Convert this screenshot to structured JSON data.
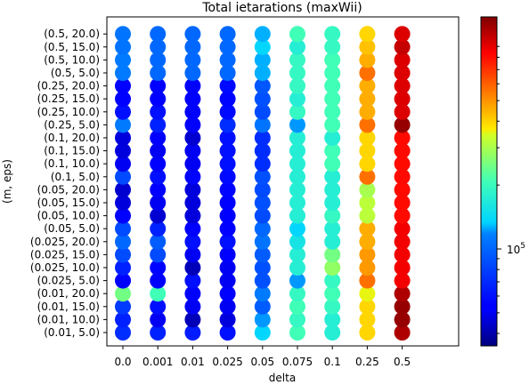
{
  "chart_data": {
    "type": "scatter",
    "title": "Total ietarations (maxWii)",
    "xlabel": "delta",
    "ylabel": "(m, eps)",
    "x_categories": [
      "0.0",
      "0.001",
      "0.01",
      "0.025",
      "0.05",
      "0.075",
      "0.1",
      "0.25",
      "0.5"
    ],
    "y_categories": [
      "(0.01, 5.0)",
      "(0.01, 10.0)",
      "(0.01, 15.0)",
      "(0.01, 20.0)",
      "(0.025, 5.0)",
      "(0.025, 10.0)",
      "(0.025, 15.0)",
      "(0.025, 20.0)",
      "(0.05, 5.0)",
      "(0.05, 10.0)",
      "(0.05, 15.0)",
      "(0.05, 20.0)",
      "(0.1, 5.0)",
      "(0.1, 10.0)",
      "(0.1, 15.0)",
      "(0.1, 20.0)",
      "(0.25, 5.0)",
      "(0.25, 10.0)",
      "(0.25, 15.0)",
      "(0.25, 20.0)",
      "(0.5, 5.0)",
      "(0.5, 10.0)",
      "(0.5, 15.0)",
      "(0.5, 20.0)"
    ],
    "color_fraction_columns_by_delta": [
      [
        0.2,
        0.18,
        0.22,
        0.55,
        0.12,
        0.18,
        0.25,
        0.3,
        0.25,
        0.12,
        0.08,
        0.07,
        0.25,
        0.1,
        0.08,
        0.08,
        0.33,
        0.15,
        0.12,
        0.12,
        0.33,
        0.33,
        0.32,
        0.32
      ],
      [
        0.18,
        0.1,
        0.15,
        0.5,
        0.12,
        0.13,
        0.25,
        0.28,
        0.18,
        0.07,
        0.1,
        0.12,
        0.15,
        0.12,
        0.1,
        0.11,
        0.18,
        0.15,
        0.12,
        0.12,
        0.3,
        0.3,
        0.3,
        0.3
      ],
      [
        0.17,
        0.05,
        0.1,
        0.12,
        0.15,
        0.05,
        0.1,
        0.15,
        0.12,
        0.08,
        0.08,
        0.08,
        0.13,
        0.1,
        0.1,
        0.07,
        0.12,
        0.12,
        0.12,
        0.12,
        0.3,
        0.3,
        0.3,
        0.3
      ],
      [
        0.15,
        0.08,
        0.1,
        0.12,
        0.1,
        0.1,
        0.12,
        0.15,
        0.12,
        0.12,
        0.12,
        0.13,
        0.14,
        0.15,
        0.15,
        0.15,
        0.2,
        0.14,
        0.13,
        0.14,
        0.3,
        0.3,
        0.3,
        0.3
      ],
      [
        0.38,
        0.35,
        0.28,
        0.33,
        0.26,
        0.26,
        0.28,
        0.32,
        0.3,
        0.25,
        0.26,
        0.25,
        0.26,
        0.2,
        0.2,
        0.2,
        0.32,
        0.25,
        0.26,
        0.27,
        0.36,
        0.36,
        0.38,
        0.36
      ],
      [
        0.5,
        0.48,
        0.5,
        0.48,
        0.35,
        0.45,
        0.45,
        0.42,
        0.38,
        0.45,
        0.45,
        0.45,
        0.45,
        0.45,
        0.45,
        0.45,
        0.35,
        0.48,
        0.45,
        0.48,
        0.48,
        0.48,
        0.45,
        0.5
      ],
      [
        0.45,
        0.45,
        0.48,
        0.5,
        0.48,
        0.58,
        0.55,
        0.45,
        0.45,
        0.48,
        0.45,
        0.45,
        0.45,
        0.5,
        0.5,
        0.45,
        0.5,
        0.5,
        0.5,
        0.5,
        0.5,
        0.5,
        0.48,
        0.48
      ],
      [
        0.68,
        0.68,
        0.68,
        0.65,
        0.78,
        0.74,
        0.74,
        0.72,
        0.72,
        0.62,
        0.62,
        0.6,
        0.78,
        0.68,
        0.68,
        0.68,
        0.78,
        0.72,
        0.72,
        0.72,
        0.78,
        0.72,
        0.7,
        0.68
      ],
      [
        0.96,
        0.98,
        0.98,
        0.96,
        0.9,
        0.9,
        0.9,
        0.9,
        0.9,
        0.88,
        0.88,
        0.88,
        0.88,
        0.88,
        0.88,
        0.88,
        0.98,
        0.92,
        0.92,
        0.92,
        0.92,
        0.92,
        0.94,
        0.92
      ]
    ],
    "colorscale": "jet",
    "colorbar_tick_label": "10^5",
    "grid": false,
    "legend": "none"
  }
}
